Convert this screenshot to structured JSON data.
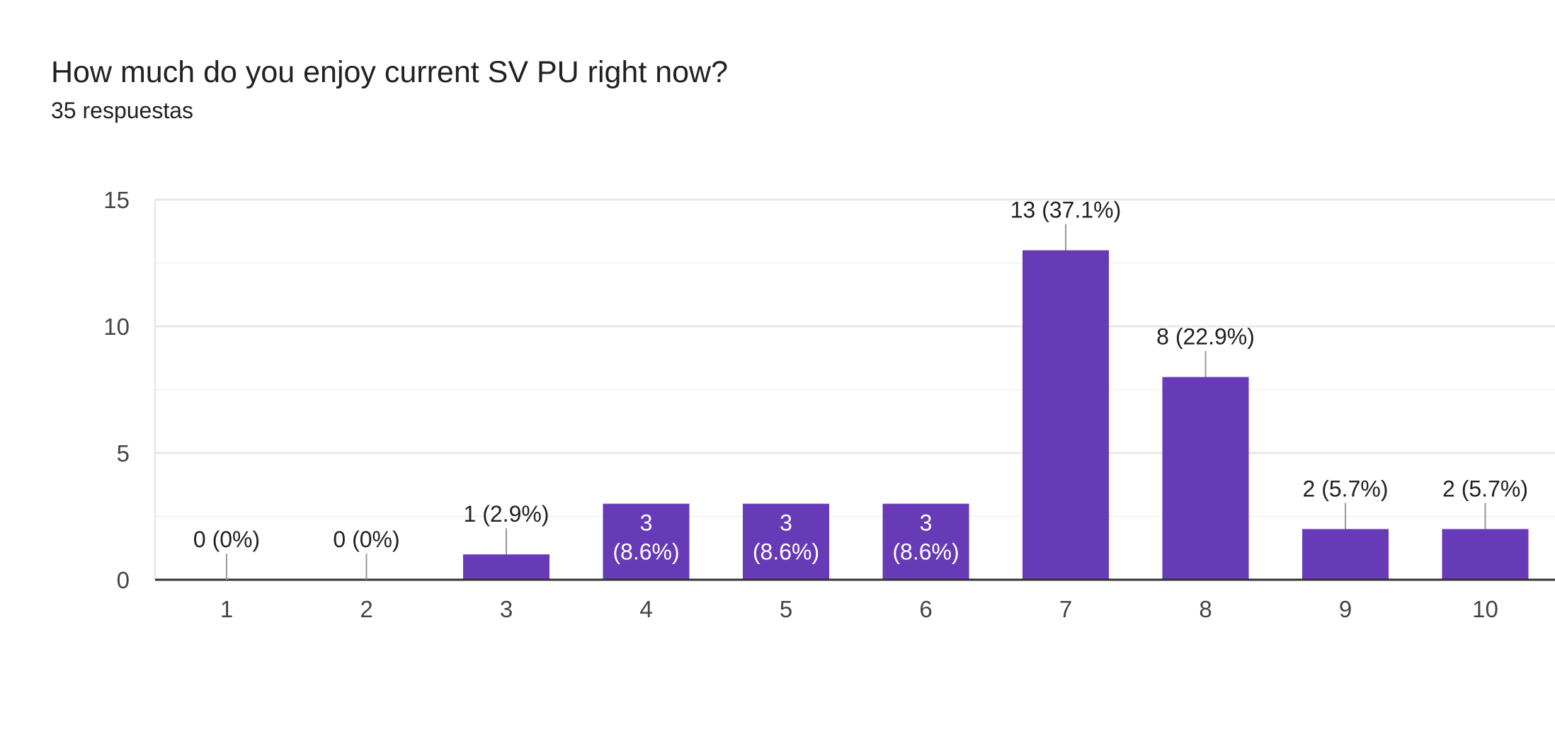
{
  "title": "How much do you enjoy current SV PU right now?",
  "subtitle": "35 respuestas",
  "colors": {
    "bar": "#673ab7",
    "axis": "#333333",
    "grid_major": "#e8e8e8",
    "grid_minor": "#f3f3f3",
    "leader": "#999999"
  },
  "chart_data": {
    "type": "bar",
    "categories": [
      "1",
      "2",
      "3",
      "4",
      "5",
      "6",
      "7",
      "8",
      "9",
      "10"
    ],
    "values": [
      0,
      0,
      1,
      3,
      3,
      3,
      13,
      8,
      2,
      2
    ],
    "data_labels": [
      "0 (0%)",
      "0 (0%)",
      "1 (2.9%)",
      "3 (8.6%)",
      "3 (8.6%)",
      "3 (8.6%)",
      "13 (37.1%)",
      "8 (22.9%)",
      "2 (5.7%)",
      "2 (5.7%)"
    ],
    "yticks": [
      0,
      5,
      10,
      15
    ],
    "ylim": [
      0,
      15
    ],
    "grid": true,
    "title": "How much do you enjoy current SV PU right now?",
    "xlabel": "",
    "ylabel": ""
  }
}
